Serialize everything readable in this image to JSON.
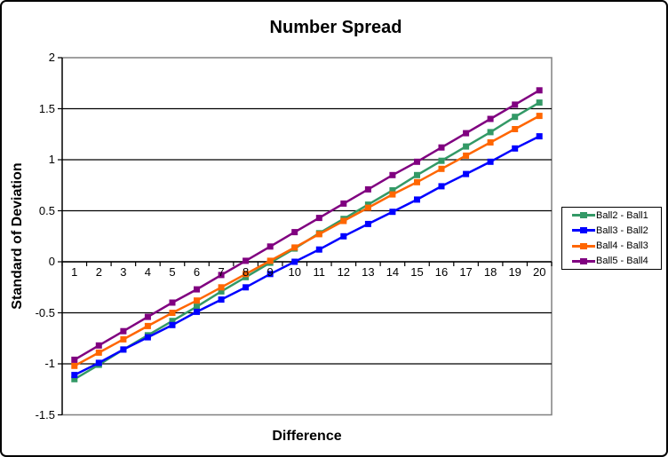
{
  "chart_data": {
    "type": "line",
    "title": "Number Spread",
    "xlabel": "Difference",
    "ylabel": "Standard of Deviation",
    "categories": [
      1,
      2,
      3,
      4,
      5,
      6,
      7,
      8,
      9,
      10,
      11,
      12,
      13,
      14,
      15,
      16,
      17,
      18,
      19,
      20
    ],
    "y_tick_labels": [
      "2",
      "1.5",
      "1",
      "0.5",
      "0",
      "-0.5",
      "-1",
      "-1.5"
    ],
    "ylim": [
      -1.5,
      2
    ],
    "grid": true,
    "legend_position": "right",
    "colors": {
      "gridline": "#000000",
      "axis": "#000000",
      "plot_border": "#808080",
      "background": "#ffffff"
    },
    "marker": "square",
    "series": [
      {
        "name": "Ball2 - Ball1",
        "color": "#339966",
        "values": [
          -1.15,
          -1.01,
          -0.86,
          -0.72,
          -0.58,
          -0.44,
          -0.29,
          -0.15,
          -0.01,
          0.13,
          0.28,
          0.42,
          0.56,
          0.7,
          0.85,
          0.99,
          1.13,
          1.27,
          1.42,
          1.56
        ]
      },
      {
        "name": "Ball3 - Ball2",
        "color": "#0000FF",
        "values": [
          -1.11,
          -0.99,
          -0.86,
          -0.74,
          -0.62,
          -0.49,
          -0.37,
          -0.25,
          -0.12,
          0.0,
          0.12,
          0.25,
          0.37,
          0.49,
          0.61,
          0.74,
          0.86,
          0.98,
          1.11,
          1.23
        ]
      },
      {
        "name": "Ball4 - Ball3",
        "color": "#FF6600",
        "values": [
          -1.02,
          -0.89,
          -0.76,
          -0.63,
          -0.5,
          -0.38,
          -0.25,
          -0.12,
          0.01,
          0.14,
          0.27,
          0.4,
          0.53,
          0.66,
          0.78,
          0.91,
          1.04,
          1.17,
          1.3,
          1.43
        ]
      },
      {
        "name": "Ball5 - Ball4",
        "color": "#800080",
        "values": [
          -0.96,
          -0.82,
          -0.68,
          -0.54,
          -0.4,
          -0.27,
          -0.13,
          0.01,
          0.15,
          0.29,
          0.43,
          0.57,
          0.71,
          0.85,
          0.98,
          1.12,
          1.26,
          1.4,
          1.54,
          1.68
        ]
      }
    ]
  }
}
